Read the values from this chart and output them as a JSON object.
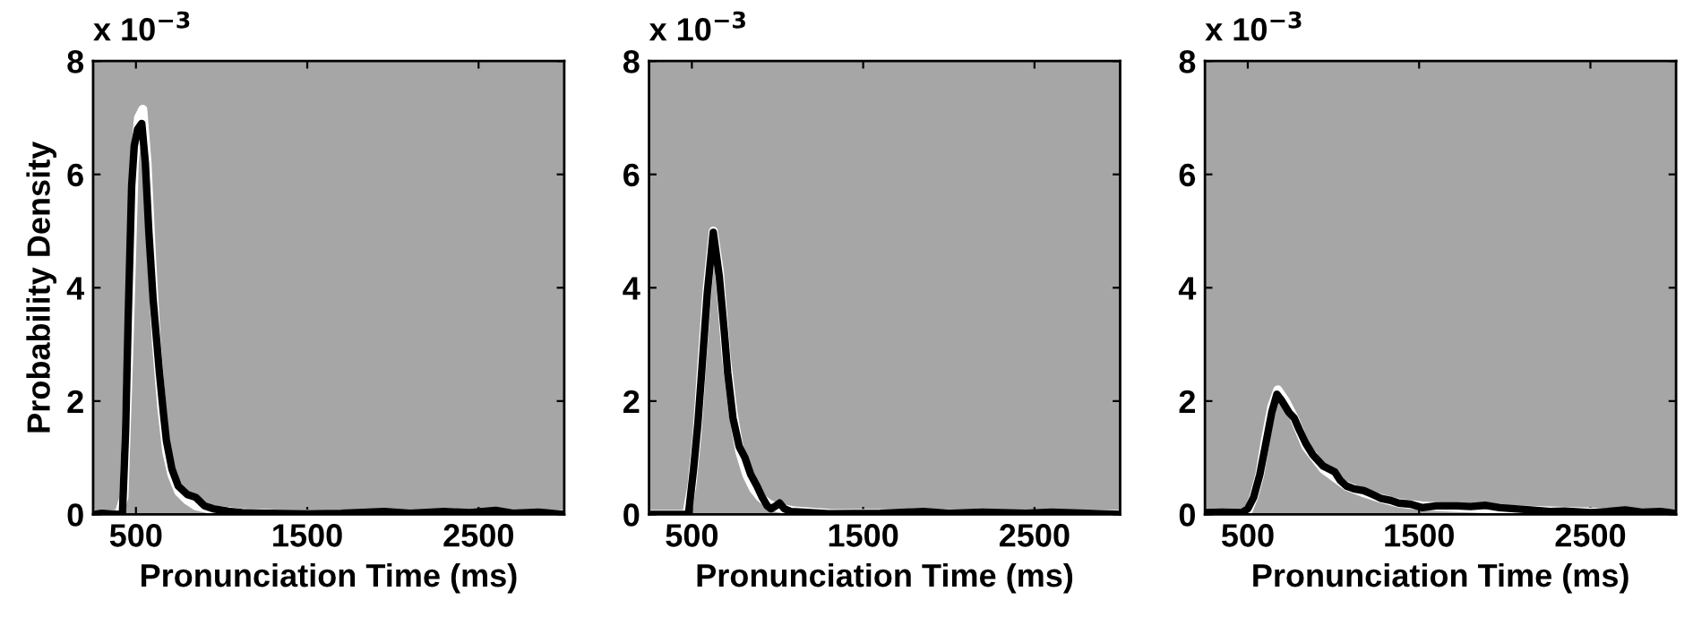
{
  "chart_data": [
    {
      "type": "line",
      "ylabel": "Probability Density",
      "xlabel": "Pronunciation Time (ms)",
      "annotations": [
        "x 10$^{−3}$"
      ],
      "xlim": [
        250,
        3000
      ],
      "xticks": [
        500,
        1500,
        2500
      ],
      "ylim": [
        0,
        8
      ],
      "yticks": [
        0,
        2,
        4,
        6,
        8
      ],
      "series": [
        {
          "color": "#ffffff",
          "x": [
            250,
            400,
            430,
            460,
            490,
            515,
            540,
            565,
            590,
            620,
            650,
            680,
            710,
            750,
            800,
            850,
            950,
            1100,
            1300,
            3000
          ],
          "values": [
            0,
            0,
            0.3,
            3.0,
            6.2,
            7.0,
            7.15,
            6.2,
            4.6,
            3.0,
            1.9,
            1.1,
            0.7,
            0.4,
            0.25,
            0.15,
            0.08,
            0.03,
            0.01,
            0
          ]
        },
        {
          "color": "#000000",
          "x": [
            250,
            300,
            400,
            421,
            440,
            455,
            475,
            490,
            510,
            534,
            555,
            575,
            600,
            637,
            660,
            678,
            710,
            747,
            800,
            850,
            900,
            950,
            1050,
            1120,
            1250,
            1500,
            1700,
            1950,
            2100,
            2300,
            2450,
            2600,
            2700,
            2850,
            3000
          ],
          "values": [
            0,
            0.02,
            0,
            0,
            1.5,
            3.5,
            5.8,
            6.5,
            6.8,
            6.9,
            6.2,
            5.0,
            3.8,
            2.5,
            1.8,
            1.3,
            0.8,
            0.5,
            0.35,
            0.3,
            0.15,
            0.1,
            0.05,
            0.03,
            0.02,
            0.01,
            0.02,
            0.05,
            0.02,
            0.05,
            0.03,
            0.07,
            0.02,
            0.04,
            0
          ]
        }
      ]
    },
    {
      "type": "line",
      "xlabel": "Pronunciation Time (ms)",
      "annotations": [
        "x 10$^{−3}$"
      ],
      "xlim": [
        250,
        3000
      ],
      "xticks": [
        500,
        1500,
        2500
      ],
      "ylim": [
        0,
        8
      ],
      "yticks": [
        0,
        2,
        4,
        6,
        8
      ],
      "series": [
        {
          "color": "#ffffff",
          "x": [
            250,
            470,
            500,
            530,
            557,
            590,
            625,
            660,
            700,
            740,
            780,
            820,
            860,
            900,
            950,
            1000,
            1100,
            1300,
            3000
          ],
          "values": [
            0,
            0,
            0.5,
            1.4,
            2.6,
            4.0,
            5.0,
            4.3,
            2.8,
            1.8,
            1.1,
            0.7,
            0.45,
            0.3,
            0.18,
            0.12,
            0.06,
            0.02,
            0
          ]
        },
        {
          "color": "#000000",
          "x": [
            250,
            400,
            480,
            510,
            535,
            557,
            590,
            625,
            660,
            690,
            709,
            740,
            776,
            810,
            844,
            880,
            911,
            940,
            962,
            990,
            1012,
            1040,
            1080,
            1150,
            1300,
            1600,
            1850,
            2000,
            2200,
            2450,
            2600,
            2800,
            3000
          ],
          "values": [
            0,
            0,
            0,
            0.8,
            1.6,
            2.5,
            3.9,
            4.98,
            4.2,
            3.2,
            2.5,
            1.7,
            1.2,
            1.0,
            0.7,
            0.5,
            0.3,
            0.15,
            0.1,
            0.15,
            0.2,
            0.1,
            0.05,
            0.04,
            0.01,
            0.02,
            0.05,
            0.02,
            0.04,
            0.02,
            0.04,
            0.02,
            0
          ]
        }
      ]
    },
    {
      "type": "line",
      "xlabel": "Pronunciation Time (ms)",
      "annotations": [
        "x 10$^{−3}$"
      ],
      "xlim": [
        250,
        3000
      ],
      "xticks": [
        500,
        1500,
        2500
      ],
      "ylim": [
        0,
        8
      ],
      "yticks": [
        0,
        2,
        4,
        6,
        8
      ],
      "series": [
        {
          "color": "#ffffff",
          "x": [
            250,
            450,
            500,
            534,
            570,
            602,
            640,
            675,
            720,
            771,
            839,
            941,
            1008,
            1076,
            1178,
            1280,
            1381,
            1517,
            1720,
            1890,
            2059,
            2263,
            2500,
            2703,
            3000
          ],
          "values": [
            0,
            0,
            0.05,
            0.3,
            0.7,
            1.3,
            1.9,
            2.2,
            2.0,
            1.7,
            1.2,
            0.8,
            0.65,
            0.5,
            0.38,
            0.28,
            0.2,
            0.15,
            0.12,
            0.1,
            0.08,
            0.06,
            0.04,
            0.03,
            0.02
          ]
        },
        {
          "color": "#000000",
          "x": [
            250,
            350,
            466,
            500,
            534,
            570,
            602,
            640,
            670,
            700,
            740,
            771,
            800,
            839,
            880,
            941,
            975,
            1008,
            1040,
            1076,
            1120,
            1178,
            1230,
            1280,
            1330,
            1381,
            1450,
            1517,
            1600,
            1720,
            1800,
            1890,
            1970,
            2059,
            2150,
            2263,
            2350,
            2500,
            2600,
            2703,
            2800,
            2907,
            3000
          ],
          "values": [
            0.03,
            0.04,
            0.03,
            0.1,
            0.3,
            0.7,
            1.2,
            1.8,
            2.12,
            2.0,
            1.8,
            1.7,
            1.5,
            1.25,
            1.05,
            0.85,
            0.8,
            0.75,
            0.6,
            0.5,
            0.45,
            0.42,
            0.35,
            0.28,
            0.25,
            0.2,
            0.18,
            0.12,
            0.15,
            0.15,
            0.14,
            0.16,
            0.12,
            0.1,
            0.08,
            0.05,
            0.06,
            0.03,
            0.05,
            0.08,
            0.04,
            0.05,
            0.02
          ]
        }
      ]
    }
  ]
}
